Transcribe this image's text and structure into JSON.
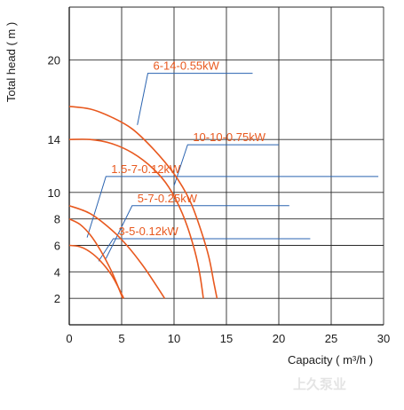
{
  "chart_data": {
    "type": "line",
    "title": "",
    "xlabel": "Capacity ( m³/h )",
    "ylabel": "Total head ( m )",
    "xlim": [
      0,
      30
    ],
    "ylim": [
      0,
      24
    ],
    "x_ticks": [
      "0",
      "5",
      "10",
      "15",
      "20",
      "25",
      "30"
    ],
    "y_ticks": [
      "2",
      "4",
      "6",
      "8",
      "10",
      "14",
      "20"
    ],
    "y_tick_values": [
      2,
      4,
      6,
      8,
      10,
      14,
      20
    ],
    "grid": true,
    "curve_color": "#e8591f",
    "leader_color": "#2a63b0",
    "series": [
      {
        "name": "6-14-0.55kW",
        "points": [
          [
            0,
            16.5
          ],
          [
            2,
            16.3
          ],
          [
            4,
            15.7
          ],
          [
            6,
            14.8
          ],
          [
            8,
            13.3
          ],
          [
            10,
            11.4
          ],
          [
            11.5,
            9.4
          ],
          [
            12.5,
            7.3
          ],
          [
            13.3,
            5.2
          ],
          [
            13.8,
            3.2
          ],
          [
            14.1,
            2.0
          ]
        ]
      },
      {
        "name": "10-10-0.75kW",
        "points": [
          [
            0,
            14.0
          ],
          [
            2,
            14.0
          ],
          [
            4,
            13.7
          ],
          [
            6,
            13.0
          ],
          [
            8,
            11.8
          ],
          [
            9.5,
            10.4
          ],
          [
            10.8,
            8.4
          ],
          [
            11.8,
            6.1
          ],
          [
            12.4,
            4.1
          ],
          [
            12.8,
            2.0
          ]
        ]
      },
      {
        "name": "1.5-7-0.12kW",
        "points": [
          [
            0,
            8.0
          ],
          [
            1,
            7.6
          ],
          [
            2,
            6.8
          ],
          [
            3,
            5.6
          ],
          [
            4,
            4.1
          ],
          [
            4.6,
            3.0
          ],
          [
            5.1,
            2.0
          ]
        ]
      },
      {
        "name": "5-7-0.25kW",
        "points": [
          [
            0,
            9.0
          ],
          [
            2,
            8.4
          ],
          [
            4,
            7.2
          ],
          [
            5.5,
            6.0
          ],
          [
            7,
            4.5
          ],
          [
            8.2,
            3.1
          ],
          [
            9.1,
            2.0
          ]
        ]
      },
      {
        "name": "3-5-0.12kW",
        "points": [
          [
            0,
            6.0
          ],
          [
            1,
            5.9
          ],
          [
            2,
            5.5
          ],
          [
            3,
            4.8
          ],
          [
            4,
            3.8
          ],
          [
            4.7,
            2.8
          ],
          [
            5.2,
            2.0
          ]
        ]
      }
    ],
    "labels": [
      {
        "text": "6-14-0.55kW",
        "anchor": [
          6.5,
          15.1
        ],
        "label_at": [
          7.5,
          19.0
        ],
        "line_end": [
          17.5,
          19.0
        ]
      },
      {
        "text": "10-10-0.75kW",
        "anchor": [
          10.0,
          10.5
        ],
        "label_at": [
          11.3,
          13.6
        ],
        "line_end": [
          20.0,
          13.6
        ]
      },
      {
        "text": "1.5-7-0.12kW",
        "anchor": [
          1.7,
          6.6
        ],
        "label_at": [
          3.5,
          11.2
        ],
        "line_end": [
          29.5,
          11.2
        ]
      },
      {
        "text": "5-7-0.25kW",
        "anchor": [
          3.5,
          5.0
        ],
        "label_at": [
          6.0,
          9.0
        ],
        "line_end": [
          21.0,
          9.0
        ]
      },
      {
        "text": "3-5-0.12kW",
        "anchor": [
          2.8,
          4.8
        ],
        "label_at": [
          4.2,
          6.5
        ],
        "line_end": [
          23.0,
          6.5
        ]
      }
    ]
  },
  "watermark": "上久泵业"
}
